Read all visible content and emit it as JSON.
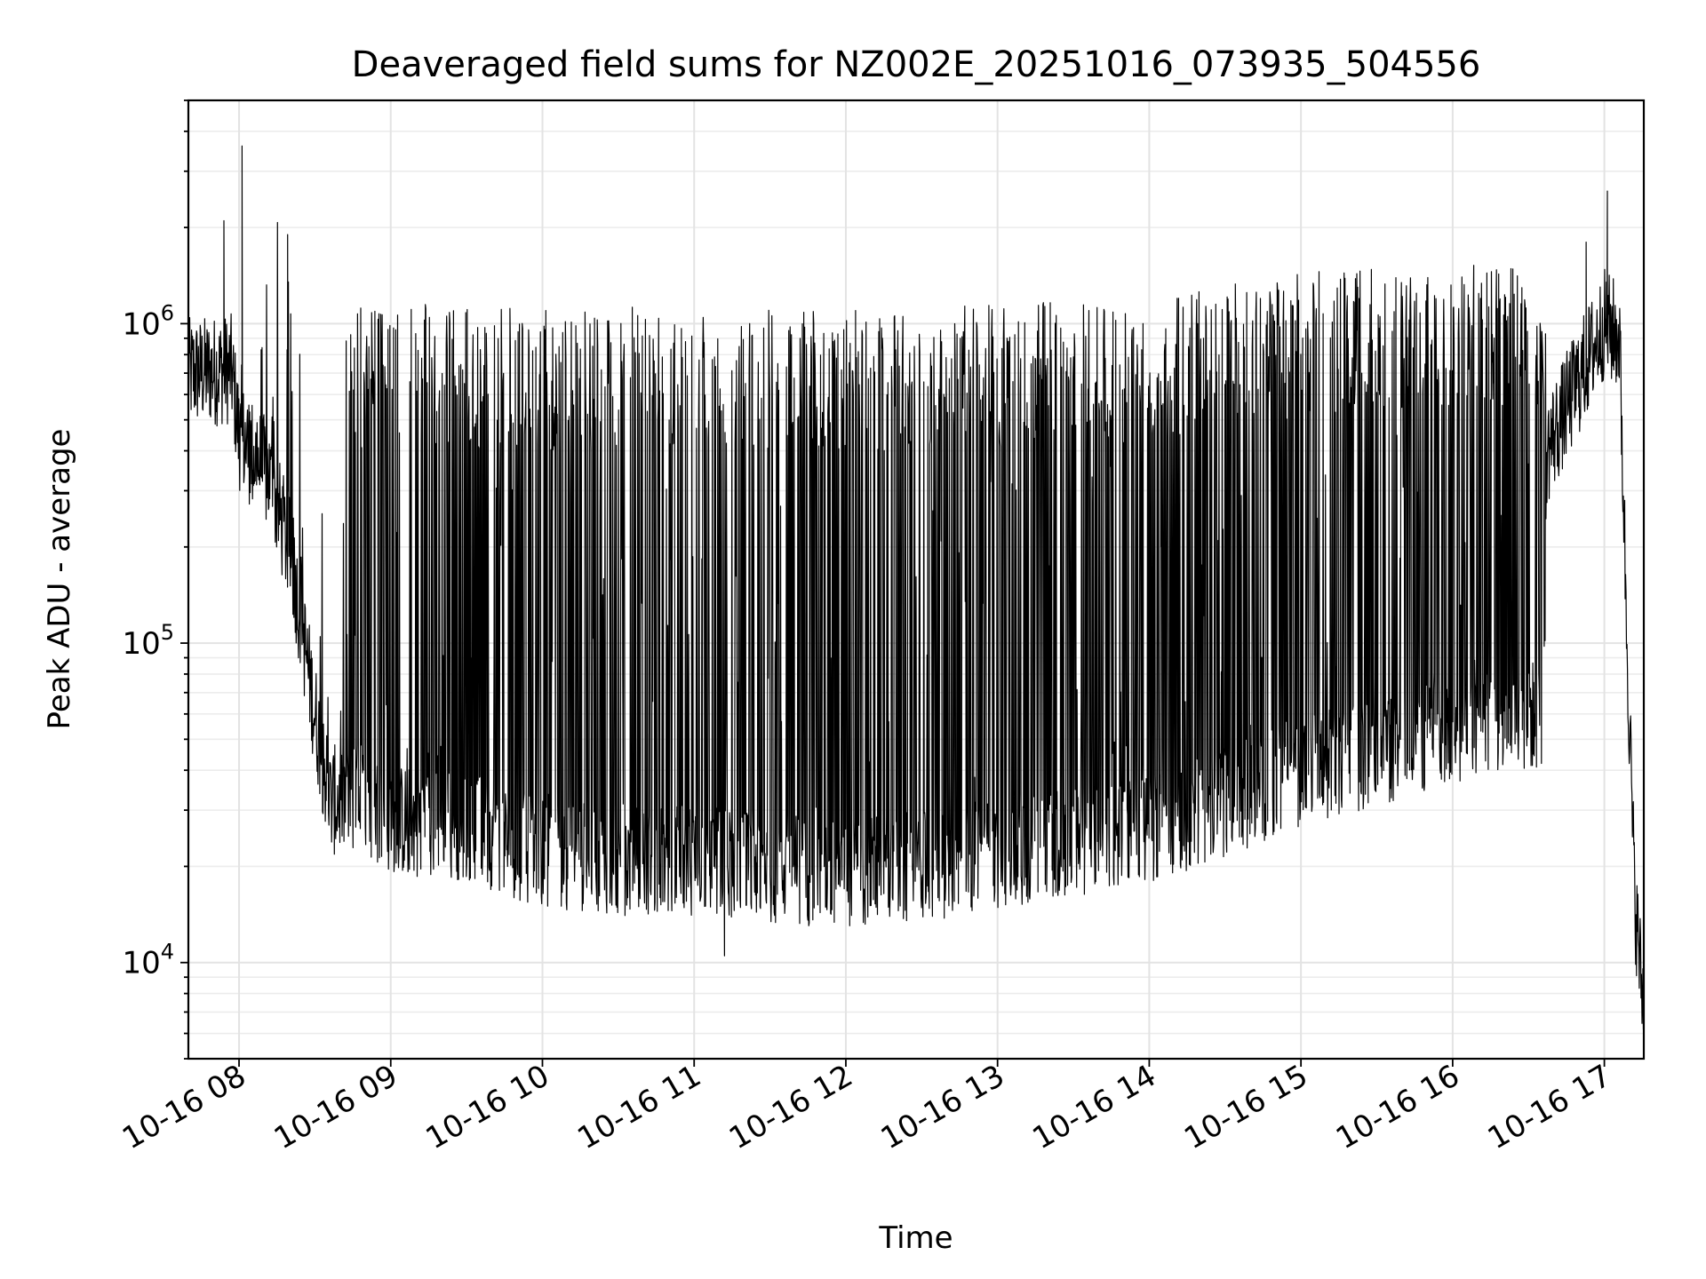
{
  "chart_data": {
    "type": "line",
    "title": "Deaveraged field sums for NZ002E_20251016_073935_504556",
    "xlabel": "Time",
    "ylabel": "Peak ADU - average",
    "yscale": "log",
    "ylim": [
      5000,
      5000000
    ],
    "xlim_hours": [
      7.666,
      17.26
    ],
    "x_ticks": [
      {
        "hour": 8,
        "label": "10-16 08"
      },
      {
        "hour": 9,
        "label": "10-16 09"
      },
      {
        "hour": 10,
        "label": "10-16 10"
      },
      {
        "hour": 11,
        "label": "10-16 11"
      },
      {
        "hour": 12,
        "label": "10-16 12"
      },
      {
        "hour": 13,
        "label": "10-16 13"
      },
      {
        "hour": 14,
        "label": "10-16 14"
      },
      {
        "hour": 15,
        "label": "10-16 15"
      },
      {
        "hour": 16,
        "label": "10-16 16"
      },
      {
        "hour": 17,
        "label": "10-16 17"
      }
    ],
    "y_ticks": [
      {
        "value": 10000,
        "base": "10",
        "exp": "4"
      },
      {
        "value": 100000,
        "base": "10",
        "exp": "5"
      },
      {
        "value": 1000000,
        "base": "10",
        "exp": "6"
      }
    ],
    "grid": true,
    "series": [
      {
        "name": "Deaveraged field sum",
        "color": "#000000",
        "baseline_profile": [
          [
            7.67,
            700000
          ],
          [
            7.95,
            720000
          ],
          [
            8.0,
            450000
          ],
          [
            8.2,
            330000
          ],
          [
            8.35,
            180000
          ],
          [
            8.5,
            60000
          ],
          [
            8.6,
            32000
          ],
          [
            8.8,
            33000
          ],
          [
            9.0,
            28000
          ],
          [
            9.5,
            27000
          ],
          [
            10.0,
            22000
          ],
          [
            10.5,
            21000
          ],
          [
            11.0,
            21000
          ],
          [
            11.5,
            20000
          ],
          [
            12.0,
            19000
          ],
          [
            12.5,
            20000
          ],
          [
            13.0,
            22000
          ],
          [
            13.5,
            24000
          ],
          [
            14.0,
            26000
          ],
          [
            14.5,
            32000
          ],
          [
            15.0,
            40000
          ],
          [
            15.5,
            45000
          ],
          [
            16.0,
            55000
          ],
          [
            16.6,
            60000
          ],
          [
            16.62,
            400000
          ],
          [
            17.0,
            1000000
          ],
          [
            17.1,
            900000
          ],
          [
            17.15,
            100000
          ],
          [
            17.2,
            16000
          ],
          [
            17.26,
            7000
          ]
        ],
        "spike_profile": [
          [
            8.0,
            1500000
          ],
          [
            8.35,
            1800000
          ],
          [
            8.8,
            1150000
          ],
          [
            9.5,
            1150000
          ],
          [
            10.0,
            1100000
          ],
          [
            11.0,
            1150000
          ],
          [
            12.0,
            1100000
          ],
          [
            13.0,
            1150000
          ],
          [
            14.0,
            1200000
          ],
          [
            15.0,
            1450000
          ],
          [
            16.0,
            1550000
          ],
          [
            16.6,
            1500000
          ],
          [
            16.95,
            1600000
          ]
        ],
        "notable_points": [
          [
            8.02,
            3600000
          ],
          [
            7.9,
            2100000
          ],
          [
            8.32,
            1900000
          ],
          [
            17.02,
            2600000
          ],
          [
            11.2,
            10500
          ],
          [
            16.88,
            1800000
          ]
        ]
      }
    ]
  }
}
